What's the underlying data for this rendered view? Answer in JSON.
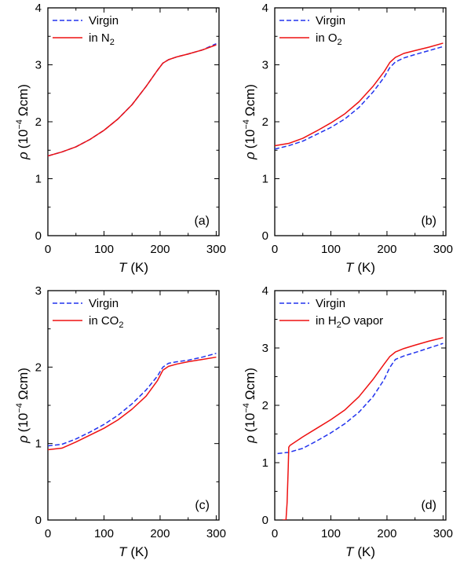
{
  "colors": {
    "virgin": "#2233ee",
    "treated": "#ee1111",
    "axis": "#000000"
  },
  "chart_data": [
    {
      "type": "line",
      "panel_label": "(a)",
      "xlabel_var": "T",
      "xlabel_unit": "(K)",
      "ylabel_var": "ρ",
      "ylabel_prefix": "(10",
      "ylabel_exp": "−4",
      "ylabel_unit": "Ωcm)",
      "xlim": [
        0,
        305
      ],
      "ylim": [
        0,
        4
      ],
      "xticks": [
        "0",
        "100",
        "200",
        "300"
      ],
      "xtick_values": [
        0,
        100,
        200,
        300
      ],
      "yticks": [
        "0",
        "1",
        "2",
        "3",
        "4"
      ],
      "ytick_values": [
        0,
        1,
        2,
        3,
        4
      ],
      "series": [
        {
          "name": "Virgin",
          "legend_text": "Virgin",
          "style": "dashed",
          "color": "#2233ee",
          "x": [
            0,
            25,
            50,
            75,
            100,
            125,
            150,
            175,
            195,
            205,
            215,
            230,
            250,
            275,
            300
          ],
          "y": [
            1.4,
            1.47,
            1.56,
            1.69,
            1.85,
            2.05,
            2.3,
            2.62,
            2.9,
            3.03,
            3.09,
            3.14,
            3.19,
            3.26,
            3.37
          ]
        },
        {
          "name": "in N2",
          "legend_text": "in N",
          "legend_sub": "2",
          "style": "solid",
          "color": "#ee1111",
          "x": [
            0,
            25,
            50,
            75,
            100,
            125,
            150,
            175,
            195,
            205,
            215,
            230,
            250,
            275,
            300
          ],
          "y": [
            1.4,
            1.47,
            1.56,
            1.69,
            1.85,
            2.05,
            2.3,
            2.62,
            2.9,
            3.03,
            3.09,
            3.14,
            3.19,
            3.26,
            3.35
          ]
        }
      ]
    },
    {
      "type": "line",
      "panel_label": "(b)",
      "xlabel_var": "T",
      "xlabel_unit": "(K)",
      "ylabel_var": "ρ",
      "ylabel_prefix": "(10",
      "ylabel_exp": "−4",
      "ylabel_unit": "Ωcm)",
      "xlim": [
        0,
        305
      ],
      "ylim": [
        0,
        4
      ],
      "xticks": [
        "0",
        "100",
        "200",
        "300"
      ],
      "xtick_values": [
        0,
        100,
        200,
        300
      ],
      "yticks": [
        "0",
        "1",
        "2",
        "3",
        "4"
      ],
      "ytick_values": [
        0,
        1,
        2,
        3,
        4
      ],
      "series": [
        {
          "name": "Virgin",
          "legend_text": "Virgin",
          "style": "dashed",
          "color": "#2233ee",
          "x": [
            0,
            25,
            50,
            75,
            100,
            125,
            150,
            175,
            195,
            205,
            215,
            230,
            250,
            275,
            300
          ],
          "y": [
            1.52,
            1.58,
            1.66,
            1.78,
            1.9,
            2.05,
            2.25,
            2.52,
            2.78,
            2.95,
            3.05,
            3.12,
            3.18,
            3.25,
            3.32
          ]
        },
        {
          "name": "in O2",
          "legend_text": "in O",
          "legend_sub": "2",
          "style": "solid",
          "color": "#ee1111",
          "x": [
            0,
            25,
            50,
            75,
            100,
            125,
            150,
            175,
            195,
            205,
            215,
            230,
            250,
            275,
            300
          ],
          "y": [
            1.58,
            1.62,
            1.71,
            1.84,
            1.98,
            2.14,
            2.35,
            2.62,
            2.88,
            3.04,
            3.13,
            3.2,
            3.25,
            3.31,
            3.38
          ]
        }
      ]
    },
    {
      "type": "line",
      "panel_label": "(c)",
      "xlabel_var": "T",
      "xlabel_unit": "(K)",
      "ylabel_var": "ρ",
      "ylabel_prefix": "(10",
      "ylabel_exp": "−4",
      "ylabel_unit": "Ωcm)",
      "xlim": [
        0,
        305
      ],
      "ylim": [
        0,
        3
      ],
      "xticks": [
        "0",
        "100",
        "200",
        "300"
      ],
      "xtick_values": [
        0,
        100,
        200,
        300
      ],
      "yticks": [
        "0",
        "1",
        "2",
        "3"
      ],
      "ytick_values": [
        0,
        1,
        2,
        3
      ],
      "series": [
        {
          "name": "Virgin",
          "legend_text": "Virgin",
          "style": "dashed",
          "color": "#2233ee",
          "x": [
            0,
            25,
            50,
            75,
            100,
            125,
            150,
            175,
            195,
            205,
            215,
            230,
            250,
            275,
            300
          ],
          "y": [
            0.97,
            0.99,
            1.06,
            1.15,
            1.25,
            1.37,
            1.52,
            1.7,
            1.88,
            2.0,
            2.05,
            2.07,
            2.09,
            2.13,
            2.18
          ]
        },
        {
          "name": "in CO2",
          "legend_text": "in CO",
          "legend_sub": "2",
          "style": "solid",
          "color": "#ee1111",
          "x": [
            0,
            25,
            50,
            75,
            100,
            125,
            150,
            175,
            195,
            205,
            215,
            230,
            250,
            275,
            300
          ],
          "y": [
            0.92,
            0.94,
            1.02,
            1.11,
            1.2,
            1.31,
            1.45,
            1.62,
            1.82,
            1.96,
            2.01,
            2.04,
            2.07,
            2.1,
            2.13
          ]
        }
      ]
    },
    {
      "type": "line",
      "panel_label": "(d)",
      "xlabel_var": "T",
      "xlabel_unit": "(K)",
      "ylabel_var": "ρ",
      "ylabel_prefix": "(10",
      "ylabel_exp": "−4",
      "ylabel_unit": "Ωcm)",
      "xlim": [
        0,
        305
      ],
      "ylim": [
        0,
        4
      ],
      "xticks": [
        "0",
        "100",
        "200",
        "300"
      ],
      "xtick_values": [
        0,
        100,
        200,
        300
      ],
      "yticks": [
        "0",
        "1",
        "2",
        "3",
        "4"
      ],
      "ytick_values": [
        0,
        1,
        2,
        3,
        4
      ],
      "series": [
        {
          "name": "Virgin",
          "legend_text": "Virgin",
          "style": "dashed",
          "color": "#2233ee",
          "x": [
            5,
            25,
            50,
            75,
            100,
            125,
            150,
            175,
            195,
            205,
            215,
            230,
            250,
            275,
            300
          ],
          "y": [
            1.16,
            1.18,
            1.25,
            1.38,
            1.52,
            1.68,
            1.88,
            2.15,
            2.45,
            2.66,
            2.8,
            2.86,
            2.92,
            3.0,
            3.08
          ]
        },
        {
          "name": "in H2O vapor",
          "legend_text": "in H",
          "legend_sub": "2",
          "legend_suffix": "O vapor",
          "style": "solid",
          "color": "#ee1111",
          "x": [
            14,
            20,
            22,
            24,
            25,
            27,
            50,
            75,
            100,
            125,
            150,
            175,
            195,
            205,
            215,
            230,
            250,
            275,
            300
          ],
          "y": [
            0.0,
            0.0,
            0.3,
            0.9,
            1.27,
            1.3,
            1.45,
            1.6,
            1.75,
            1.92,
            2.15,
            2.45,
            2.72,
            2.85,
            2.93,
            2.99,
            3.05,
            3.12,
            3.18
          ]
        }
      ]
    }
  ]
}
